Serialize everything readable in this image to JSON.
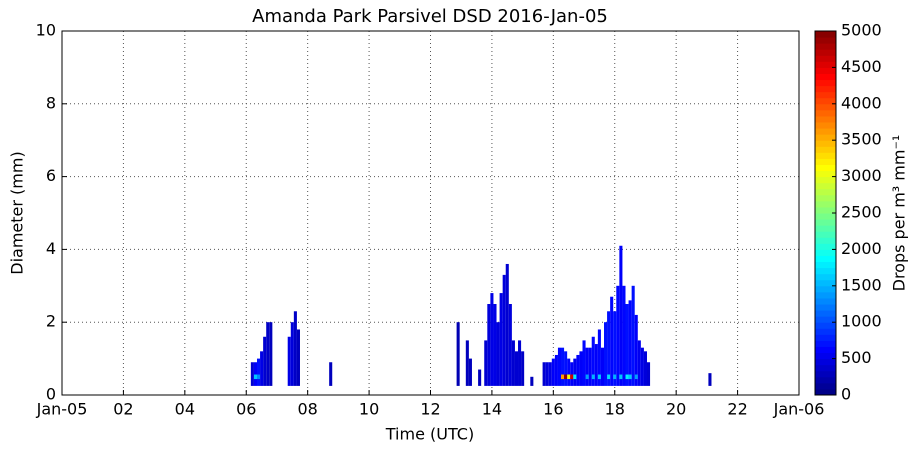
{
  "chart_data": {
    "type": "heatmap",
    "title": "Amanda Park Parsivel DSD 2016-Jan-05",
    "x_label": "Time (UTC)",
    "y_label": "Diameter (mm)",
    "colorbar_label": "Drops per m³ mm⁻¹",
    "xlim": [
      0,
      24
    ],
    "xticks": [
      {
        "value": 0,
        "label": "Jan-05"
      },
      {
        "value": 2,
        "label": "02"
      },
      {
        "value": 4,
        "label": "04"
      },
      {
        "value": 6,
        "label": "06"
      },
      {
        "value": 8,
        "label": "08"
      },
      {
        "value": 10,
        "label": "10"
      },
      {
        "value": 12,
        "label": "12"
      },
      {
        "value": 14,
        "label": "14"
      },
      {
        "value": 16,
        "label": "16"
      },
      {
        "value": 18,
        "label": "18"
      },
      {
        "value": 20,
        "label": "20"
      },
      {
        "value": 22,
        "label": "22"
      },
      {
        "value": 24,
        "label": "Jan-06"
      }
    ],
    "ylim": [
      0,
      10
    ],
    "yticks": [
      0,
      2,
      4,
      6,
      8,
      10
    ],
    "clim": [
      0,
      5000
    ],
    "cticks": [
      0,
      500,
      1000,
      1500,
      2000,
      2500,
      3000,
      3500,
      4000,
      4500,
      5000
    ],
    "grid": true,
    "colormap": "jet",
    "columns": {
      "x": [
        6.2,
        6.3,
        6.4,
        6.5,
        6.6,
        6.7,
        6.8,
        7.4,
        7.5,
        7.6,
        7.7,
        8.75,
        12.9,
        13.2,
        13.3,
        13.6,
        13.8,
        13.9,
        14.0,
        14.1,
        14.2,
        14.3,
        14.4,
        14.5,
        14.6,
        14.7,
        14.8,
        14.9,
        15.0,
        15.3,
        15.7,
        15.8,
        15.9,
        16.0,
        16.1,
        16.2,
        16.3,
        16.4,
        16.5,
        16.6,
        16.7,
        16.8,
        16.9,
        17.0,
        17.1,
        17.2,
        17.3,
        17.4,
        17.5,
        17.6,
        17.7,
        17.8,
        17.9,
        18.0,
        18.1,
        18.2,
        18.3,
        18.4,
        18.5,
        18.6,
        18.7,
        18.8,
        18.9,
        19.0,
        19.1,
        21.1
      ],
      "top": [
        0.9,
        0.9,
        1.0,
        1.2,
        1.6,
        2.0,
        2.0,
        1.6,
        2.0,
        2.3,
        1.8,
        0.9,
        2.0,
        1.5,
        1.0,
        0.7,
        1.5,
        2.5,
        2.8,
        2.5,
        2.0,
        2.8,
        3.3,
        3.6,
        2.5,
        1.5,
        1.2,
        1.5,
        1.2,
        0.5,
        0.9,
        0.9,
        0.9,
        1.0,
        1.1,
        1.3,
        1.3,
        1.2,
        1.0,
        0.9,
        1.0,
        1.1,
        1.2,
        1.5,
        1.3,
        1.3,
        1.6,
        1.4,
        1.8,
        1.3,
        2.0,
        2.3,
        2.7,
        2.3,
        3.0,
        4.1,
        3.0,
        2.5,
        2.6,
        3.0,
        2.2,
        1.5,
        1.3,
        1.2,
        0.9,
        0.6
      ],
      "values": [
        400,
        600,
        700,
        500,
        400,
        350,
        300,
        500,
        450,
        350,
        300,
        300,
        250,
        300,
        300,
        300,
        400,
        450,
        500,
        500,
        450,
        500,
        450,
        400,
        450,
        400,
        400,
        400,
        350,
        300,
        400,
        450,
        500,
        600,
        600,
        650,
        700,
        700,
        650,
        600,
        550,
        600,
        600,
        650,
        600,
        600,
        650,
        600,
        650,
        600,
        700,
        700,
        650,
        700,
        650,
        600,
        650,
        700,
        650,
        700,
        600,
        550,
        500,
        450,
        400,
        300
      ]
    },
    "cells": {
      "x": [
        6.3,
        6.4,
        16.3,
        16.4,
        16.5,
        16.6,
        16.7,
        17.1,
        17.3,
        17.5,
        17.8,
        18.0,
        18.2,
        18.4,
        18.5,
        18.7
      ],
      "y": [
        0.5,
        0.5,
        0.5,
        0.5,
        0.5,
        0.5,
        0.5,
        0.5,
        0.5,
        0.5,
        0.5,
        0.5,
        0.5,
        0.5,
        0.5,
        0.5
      ],
      "values": [
        1600,
        1300,
        3600,
        4900,
        3100,
        4600,
        1800,
        1400,
        1500,
        1600,
        1700,
        1500,
        1600,
        1800,
        1600,
        1400
      ]
    }
  }
}
